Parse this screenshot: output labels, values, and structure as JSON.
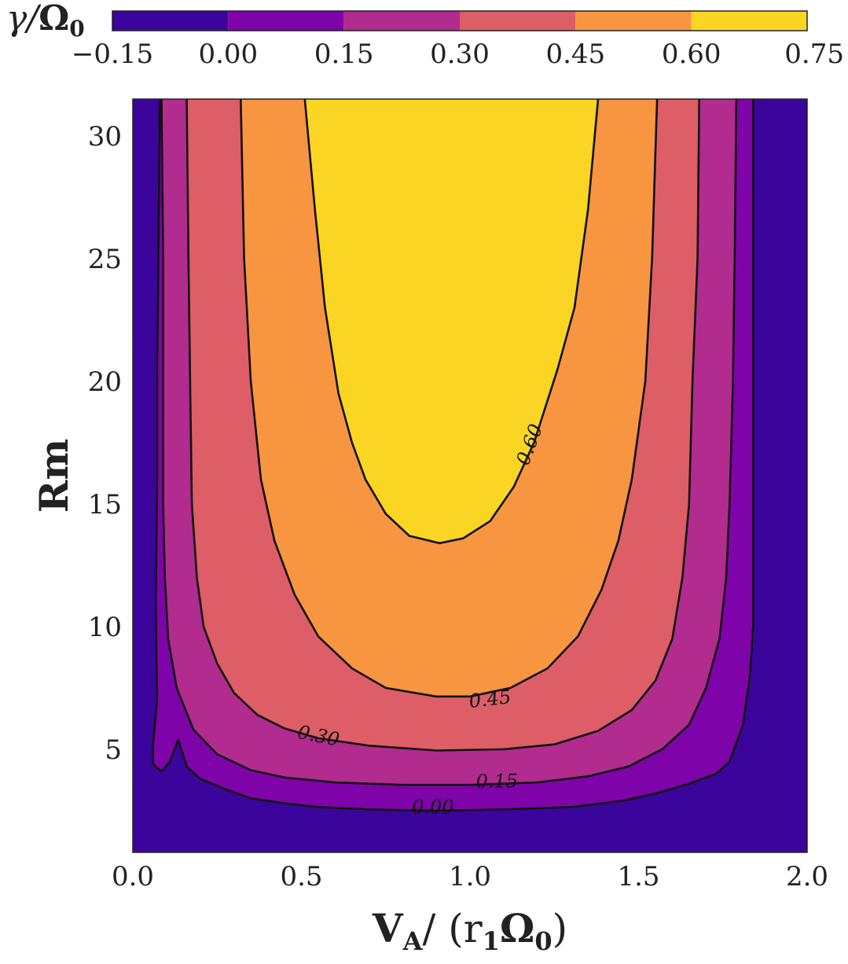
{
  "chart_data": {
    "type": "contourf",
    "title": "",
    "xlabel_main": "V",
    "xlabel_sub": "A",
    "xlabel_mid": "/ (r",
    "xlabel_sub2": "1",
    "xlabel_omega": "Ω",
    "xlabel_sub3": "0",
    "xlabel_end": ")",
    "ylabel": "Rm",
    "xlim": [
      0.0,
      2.0
    ],
    "ylim": [
      0.8,
      31.5
    ],
    "x_ticks": [
      0.0,
      0.5,
      1.0,
      1.5,
      2.0
    ],
    "x_tick_labels": [
      "0.0",
      "0.5",
      "1.0",
      "1.5",
      "2.0"
    ],
    "y_ticks": [
      5,
      10,
      15,
      20,
      25,
      30
    ],
    "y_tick_labels": [
      "5",
      "10",
      "15",
      "20",
      "25",
      "30"
    ],
    "colorbar": {
      "label_gamma": "γ/",
      "label_omega": "Ω",
      "label_sub": "0",
      "levels": [
        -0.15,
        0.0,
        0.15,
        0.3,
        0.45,
        0.6,
        0.75
      ],
      "tick_labels": [
        "−0.15",
        "0.00",
        "0.15",
        "0.30",
        "0.45",
        "0.60",
        "0.75"
      ],
      "colors": [
        "#3b049a",
        "#7e03a8",
        "#b22b8f",
        "#dd5e66",
        "#f89540",
        "#fad524"
      ]
    },
    "contour_labels": [
      {
        "text": "0.00",
        "x": 0.89,
        "y": 2.6
      },
      {
        "text": "0.15",
        "x": 1.08,
        "y": 3.65
      },
      {
        "text": "0.30",
        "x": 0.55,
        "y": 5.5
      },
      {
        "text": "0.45",
        "x": 1.06,
        "y": 7.0
      },
      {
        "text": "0.60",
        "x": 1.18,
        "y": 17.4
      }
    ],
    "contours": [
      {
        "level": 0.0,
        "points": [
          [
            0.08,
            31.5
          ],
          [
            0.078,
            28
          ],
          [
            0.075,
            24
          ],
          [
            0.072,
            20
          ],
          [
            0.072,
            16
          ],
          [
            0.07,
            13
          ],
          [
            0.068,
            11
          ],
          [
            0.07,
            9
          ],
          [
            0.072,
            7
          ],
          [
            0.06,
            5.2
          ],
          [
            0.06,
            4.4
          ],
          [
            0.085,
            4.1
          ],
          [
            0.11,
            4.5
          ],
          [
            0.135,
            5.4
          ],
          [
            0.16,
            4.3
          ],
          [
            0.2,
            3.8
          ],
          [
            0.27,
            3.4
          ],
          [
            0.35,
            3.0
          ],
          [
            0.45,
            2.8
          ],
          [
            0.55,
            2.65
          ],
          [
            0.7,
            2.55
          ],
          [
            0.9,
            2.5
          ],
          [
            1.1,
            2.55
          ],
          [
            1.3,
            2.65
          ],
          [
            1.45,
            2.9
          ],
          [
            1.55,
            3.2
          ],
          [
            1.65,
            3.6
          ],
          [
            1.73,
            4.0
          ],
          [
            1.77,
            4.5
          ],
          [
            1.81,
            6.0
          ],
          [
            1.83,
            8.0
          ],
          [
            1.84,
            10.0
          ],
          [
            1.84,
            14
          ],
          [
            1.84,
            20
          ],
          [
            1.84,
            25
          ],
          [
            1.84,
            31.5
          ]
        ]
      },
      {
        "level": 0.15,
        "points": [
          [
            0.085,
            31.5
          ],
          [
            0.09,
            25
          ],
          [
            0.09,
            20
          ],
          [
            0.09,
            15
          ],
          [
            0.095,
            12
          ],
          [
            0.105,
            9.5
          ],
          [
            0.13,
            7.5
          ],
          [
            0.18,
            5.8
          ],
          [
            0.25,
            4.8
          ],
          [
            0.35,
            4.15
          ],
          [
            0.45,
            3.85
          ],
          [
            0.6,
            3.65
          ],
          [
            0.8,
            3.55
          ],
          [
            1.0,
            3.55
          ],
          [
            1.2,
            3.65
          ],
          [
            1.35,
            3.9
          ],
          [
            1.47,
            4.3
          ],
          [
            1.57,
            5.0
          ],
          [
            1.65,
            6.0
          ],
          [
            1.7,
            7.5
          ],
          [
            1.74,
            9.5
          ],
          [
            1.76,
            12
          ],
          [
            1.77,
            15
          ],
          [
            1.78,
            20
          ],
          [
            1.785,
            25
          ],
          [
            1.79,
            31.5
          ]
        ]
      },
      {
        "level": 0.3,
        "points": [
          [
            0.16,
            31.5
          ],
          [
            0.165,
            25
          ],
          [
            0.17,
            20
          ],
          [
            0.175,
            15
          ],
          [
            0.19,
            12
          ],
          [
            0.21,
            10
          ],
          [
            0.25,
            8.5
          ],
          [
            0.3,
            7.3
          ],
          [
            0.37,
            6.4
          ],
          [
            0.45,
            5.85
          ],
          [
            0.55,
            5.45
          ],
          [
            0.7,
            5.15
          ],
          [
            0.9,
            4.95
          ],
          [
            1.1,
            5.0
          ],
          [
            1.25,
            5.2
          ],
          [
            1.38,
            5.75
          ],
          [
            1.48,
            6.6
          ],
          [
            1.55,
            7.8
          ],
          [
            1.6,
            9.5
          ],
          [
            1.63,
            12
          ],
          [
            1.65,
            15
          ],
          [
            1.66,
            20
          ],
          [
            1.675,
            25
          ],
          [
            1.68,
            31.5
          ]
        ]
      },
      {
        "level": 0.45,
        "points": [
          [
            0.32,
            31.5
          ],
          [
            0.33,
            25
          ],
          [
            0.35,
            20
          ],
          [
            0.38,
            16
          ],
          [
            0.42,
            13.5
          ],
          [
            0.48,
            11.3
          ],
          [
            0.55,
            9.6
          ],
          [
            0.65,
            8.3
          ],
          [
            0.75,
            7.5
          ],
          [
            0.9,
            7.15
          ],
          [
            1.0,
            7.15
          ],
          [
            1.12,
            7.5
          ],
          [
            1.23,
            8.3
          ],
          [
            1.32,
            9.6
          ],
          [
            1.39,
            11.5
          ],
          [
            1.44,
            13.5
          ],
          [
            1.48,
            16
          ],
          [
            1.52,
            20
          ],
          [
            1.54,
            25
          ],
          [
            1.555,
            31.5
          ]
        ]
      },
      {
        "level": 0.6,
        "points": [
          [
            0.51,
            31.5
          ],
          [
            0.54,
            27
          ],
          [
            0.57,
            23
          ],
          [
            0.61,
            19.5
          ],
          [
            0.65,
            17.5
          ],
          [
            0.69,
            16.0
          ],
          [
            0.75,
            14.6
          ],
          [
            0.82,
            13.7
          ],
          [
            0.91,
            13.4
          ],
          [
            0.98,
            13.6
          ],
          [
            1.06,
            14.3
          ],
          [
            1.13,
            15.7
          ],
          [
            1.19,
            17.5
          ],
          [
            1.26,
            20.5
          ],
          [
            1.31,
            23
          ],
          [
            1.35,
            27
          ],
          [
            1.38,
            31.5
          ]
        ]
      }
    ]
  }
}
